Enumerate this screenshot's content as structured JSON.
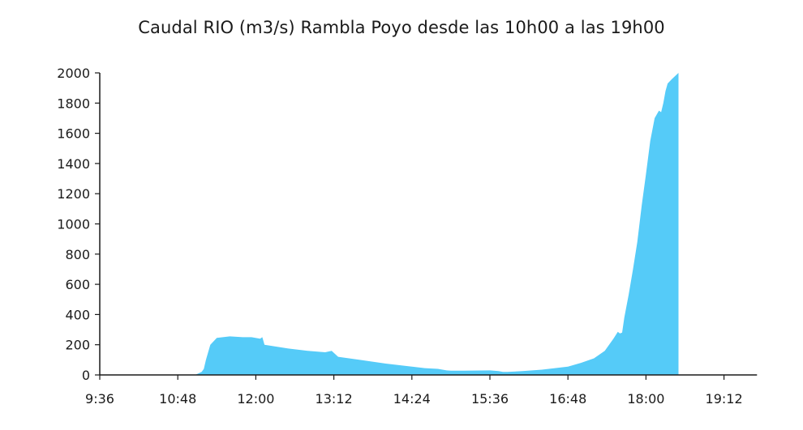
{
  "chart_data": {
    "type": "area",
    "title": "Caudal RIO (m3/s) Rambla Poyo desde las 10h00 a las 19h00",
    "xlabel": "",
    "ylabel": "",
    "x_tick_labels": [
      "9:36",
      "10:48",
      "12:00",
      "13:12",
      "14:24",
      "15:36",
      "16:48",
      "18:00",
      "19:12"
    ],
    "x_tick_minutes": [
      576,
      648,
      720,
      792,
      864,
      936,
      1008,
      1080,
      1152
    ],
    "xlim_minutes": [
      576,
      1160
    ],
    "y_ticks": [
      0,
      200,
      400,
      600,
      800,
      1000,
      1200,
      1400,
      1600,
      1800,
      2000
    ],
    "ylim": [
      0,
      2000
    ],
    "grid": false,
    "legend": "none",
    "color": "#55cbf8",
    "series": [
      {
        "x": [
          "9:36",
          "11:04",
          "11:10",
          "11:12",
          "11:14",
          "11:18",
          "11:24",
          "11:36",
          "11:48",
          "11:56",
          "12:04",
          "12:06",
          "12:08",
          "12:30",
          "12:48",
          "13:04",
          "13:10",
          "13:16",
          "13:36",
          "14:00",
          "14:24",
          "14:36",
          "14:48",
          "14:56",
          "15:00",
          "15:12",
          "15:36",
          "15:44",
          "15:48",
          "15:52",
          "16:06",
          "16:24",
          "16:48",
          "17:00",
          "17:12",
          "17:22",
          "17:30",
          "17:34",
          "17:36",
          "17:38",
          "17:40",
          "17:44",
          "17:48",
          "17:52",
          "17:56",
          "18:00",
          "18:04",
          "18:08",
          "18:12",
          "18:14",
          "18:16",
          "18:18",
          "18:20",
          "18:24",
          "18:30"
        ],
        "y": [
          0,
          0,
          20,
          40,
          100,
          200,
          245,
          255,
          250,
          250,
          240,
          250,
          200,
          175,
          160,
          150,
          160,
          120,
          100,
          75,
          55,
          45,
          40,
          30,
          28,
          28,
          30,
          25,
          20,
          20,
          25,
          35,
          55,
          80,
          110,
          160,
          240,
          285,
          275,
          280,
          380,
          530,
          700,
          880,
          1120,
          1330,
          1550,
          1700,
          1750,
          1740,
          1800,
          1880,
          1930,
          1960,
          2000
        ]
      }
    ]
  }
}
